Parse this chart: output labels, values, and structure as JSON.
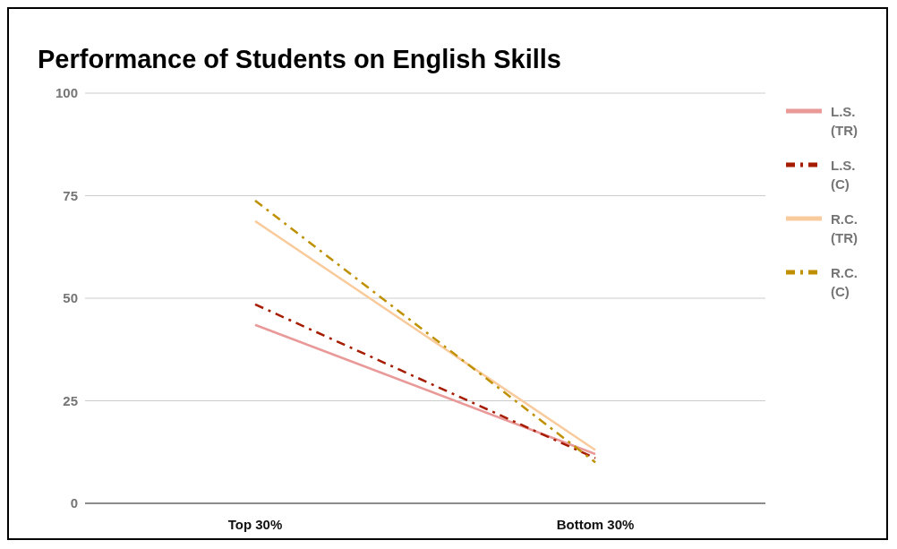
{
  "chart_data": {
    "type": "line",
    "title": "Performance of Students on English Skills",
    "categories": [
      "Top 30%",
      "Bottom 30%"
    ],
    "series": [
      {
        "name": "L.S. (TR)",
        "color": "#ea9999",
        "values": [
          43.5,
          12
        ],
        "line_style": "solid"
      },
      {
        "name": "L.S. (C)",
        "color": "#a61c00",
        "values": [
          48.5,
          11
        ],
        "line_style": "dashed"
      },
      {
        "name": "R.C. (TR)",
        "color": "#f9cb9c",
        "values": [
          68.8,
          13
        ],
        "line_style": "solid"
      },
      {
        "name": "R.C. (C)",
        "color": "#bf9000",
        "values": [
          73.8,
          10
        ],
        "line_style": "dashed"
      }
    ],
    "ylim": [
      0,
      100
    ],
    "yticks": [
      0,
      25,
      50,
      75,
      100
    ],
    "grid": "y",
    "legend": "right",
    "marker": "none"
  }
}
